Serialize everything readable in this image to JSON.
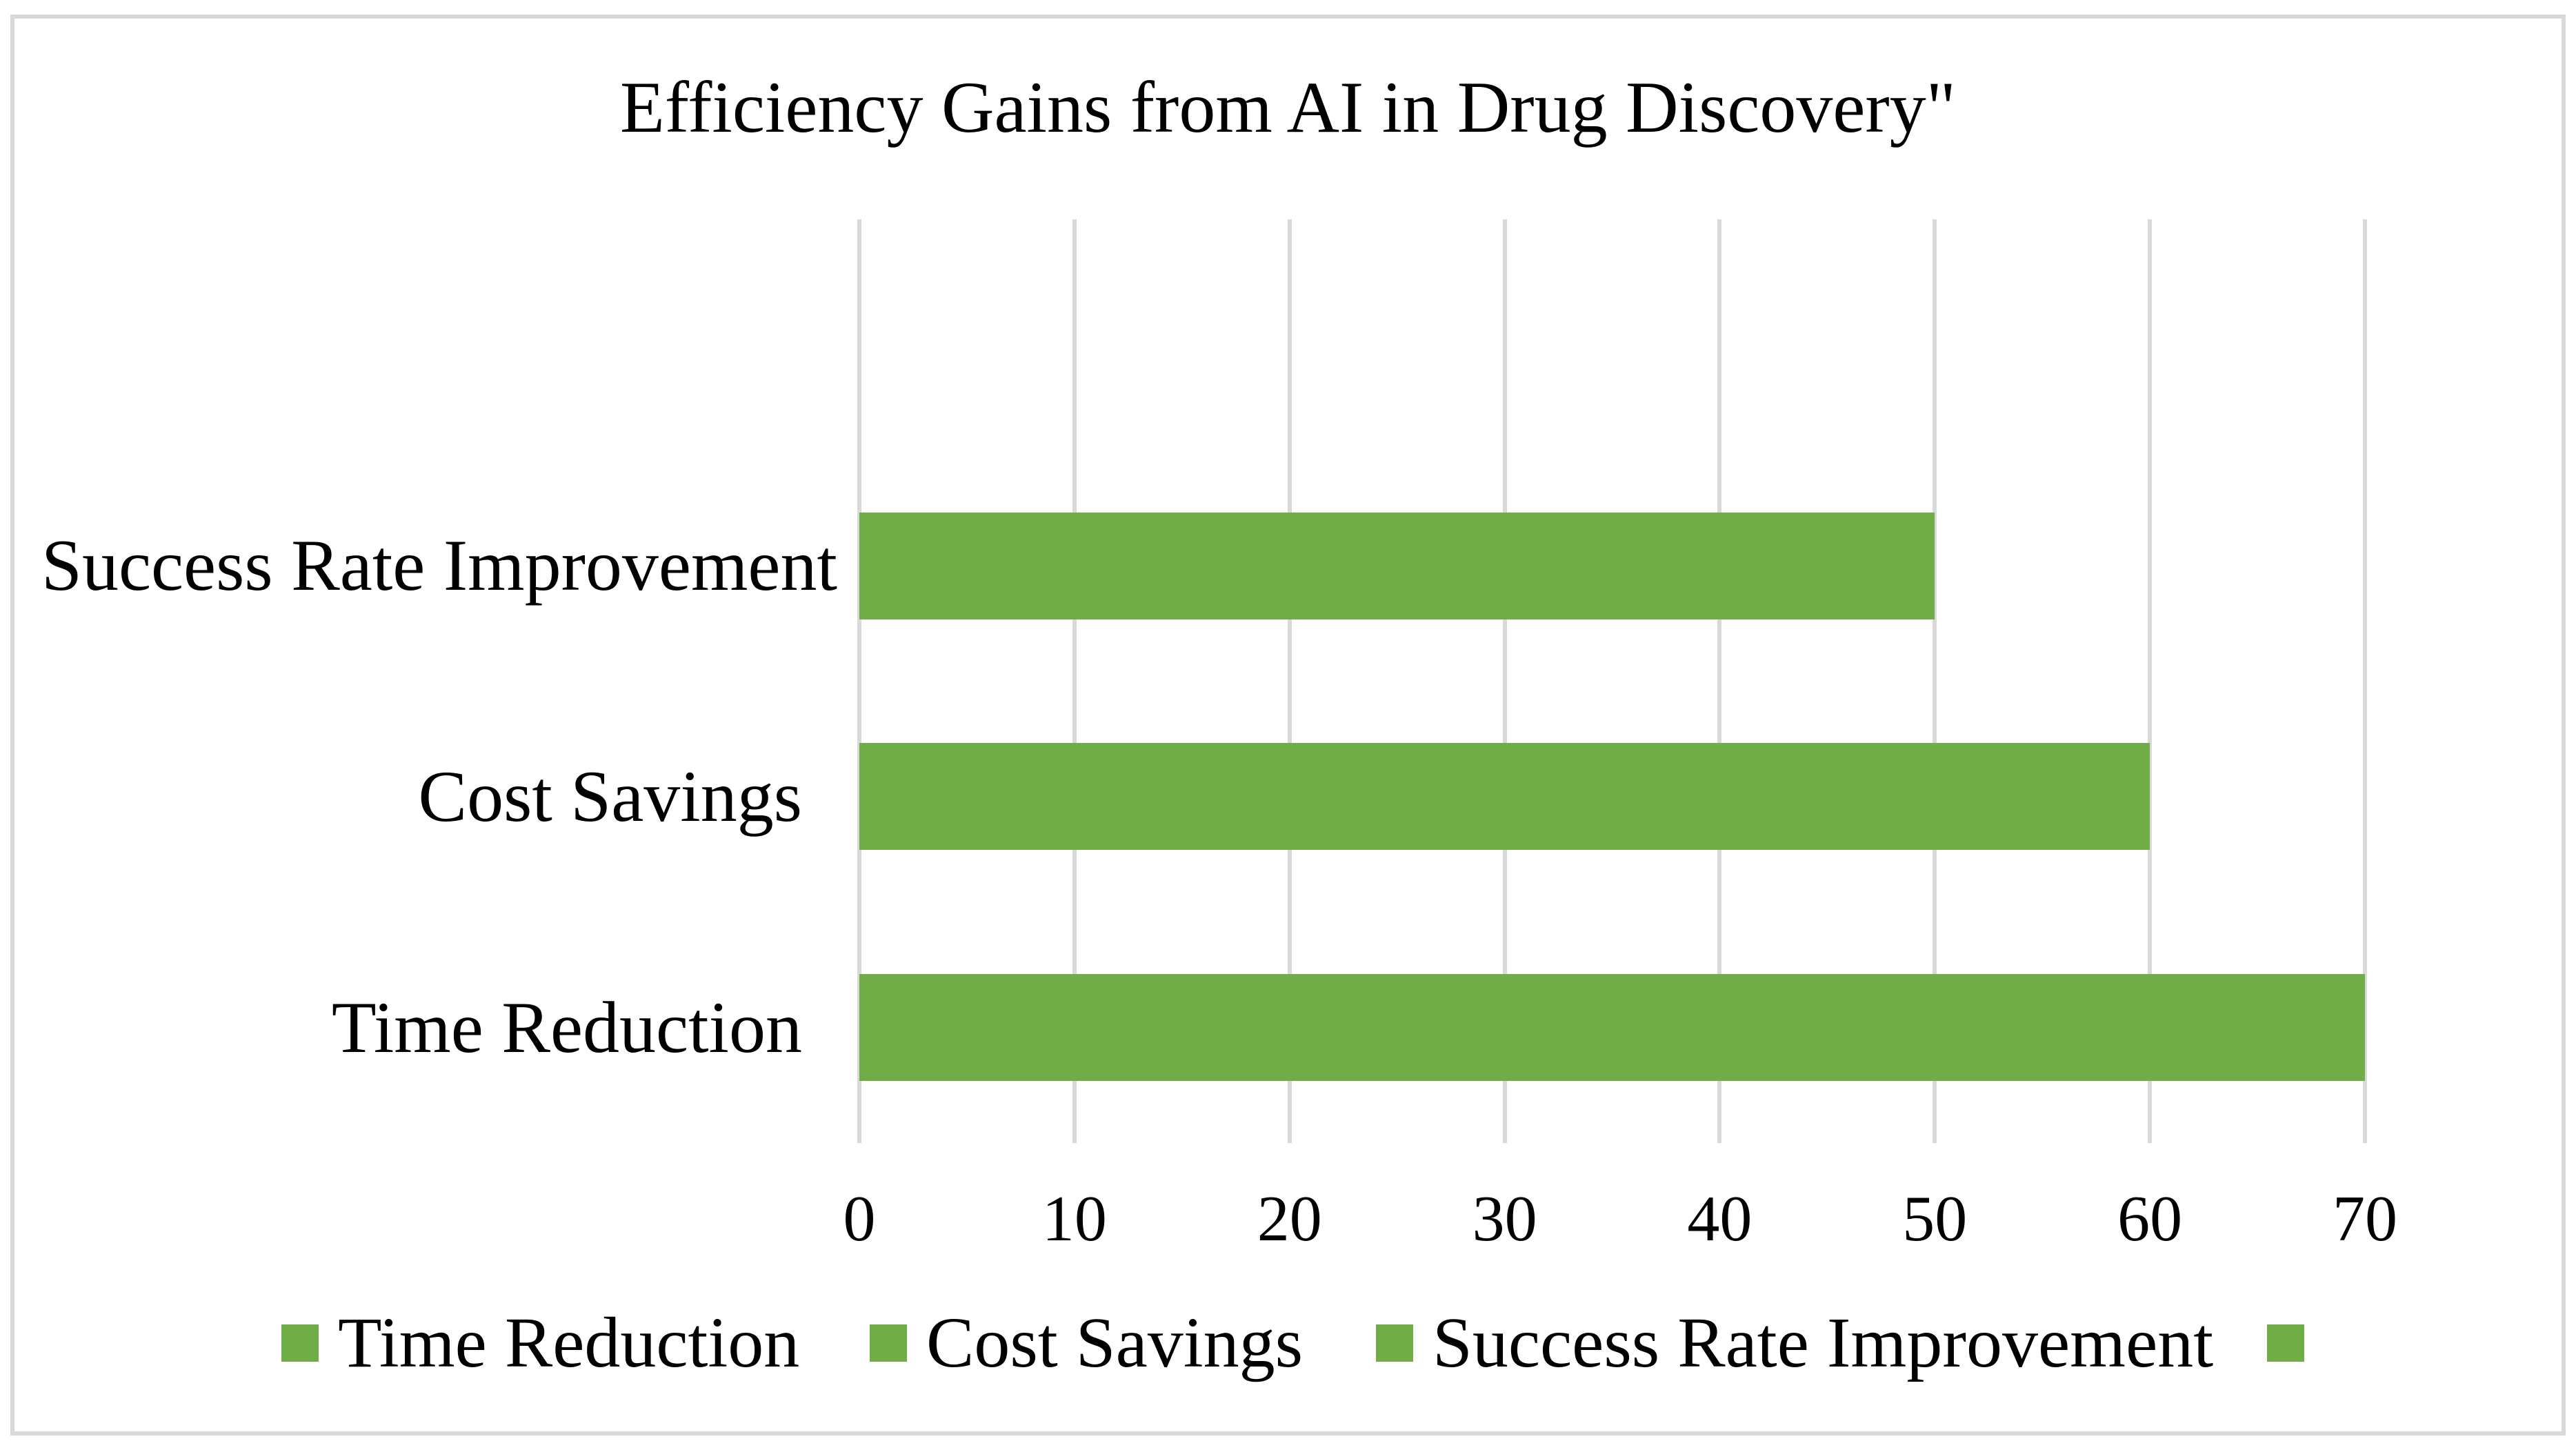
{
  "chart_data": {
    "type": "bar",
    "orientation": "horizontal",
    "title": "Efficiency Gains from AI in Drug Discovery\"",
    "categories": [
      "Time Reduction",
      "Cost Savings",
      "Success Rate Improvement"
    ],
    "values": [
      70,
      60,
      50
    ],
    "xlim": [
      0,
      70
    ],
    "xticks": [
      0,
      10,
      20,
      30,
      40,
      50,
      60,
      70
    ],
    "xlabel": "",
    "ylabel": "",
    "grid": true,
    "legend_position": "bottom",
    "legend_entries": [
      "Time Reduction",
      "Cost Savings",
      "Success Rate Improvement",
      ""
    ],
    "bands_top_to_bottom": [
      {
        "label": "",
        "value": null
      },
      {
        "label": "Success Rate Improvement",
        "value": 50
      },
      {
        "label": "Cost Savings",
        "value": 60
      },
      {
        "label": "Time Reduction",
        "value": 70
      }
    ],
    "colors": {
      "bar": "#70AD47",
      "gridline": "#D9D9D9",
      "border": "#D9D9D9",
      "text": "#000000",
      "background": "#FFFFFF"
    }
  }
}
